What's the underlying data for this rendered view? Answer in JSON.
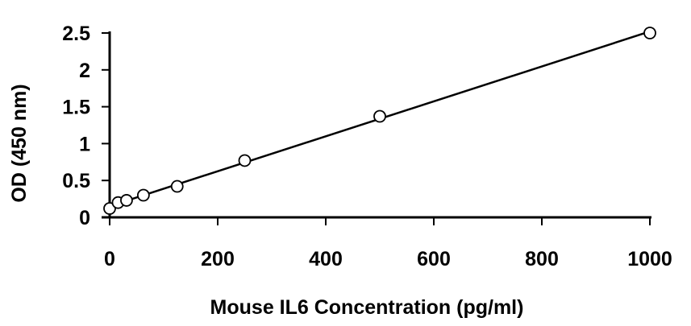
{
  "chart_data": {
    "type": "scatter",
    "title": "",
    "xlabel": "Mouse IL6 Concentration (pg/ml)",
    "ylabel": "OD (450 nm)",
    "xlim": [
      0,
      1000
    ],
    "ylim": [
      0,
      2.5
    ],
    "xticks": [
      "0",
      "200",
      "400",
      "600",
      "800",
      "1000"
    ],
    "yticks": [
      "0",
      "0.5",
      "1",
      "1.5",
      "2",
      "2.5"
    ],
    "grid": false,
    "legend": "none",
    "marker": "open-circle",
    "trendline": "linear",
    "points": [
      {
        "x": 0,
        "y": 0.12
      },
      {
        "x": 15.6,
        "y": 0.2
      },
      {
        "x": 31.25,
        "y": 0.23
      },
      {
        "x": 62.5,
        "y": 0.3
      },
      {
        "x": 125,
        "y": 0.42
      },
      {
        "x": 250,
        "y": 0.77
      },
      {
        "x": 500,
        "y": 1.37
      },
      {
        "x": 1000,
        "y": 2.5
      }
    ],
    "colors": {
      "line": "#000000",
      "marker_fill": "#ffffff"
    }
  }
}
